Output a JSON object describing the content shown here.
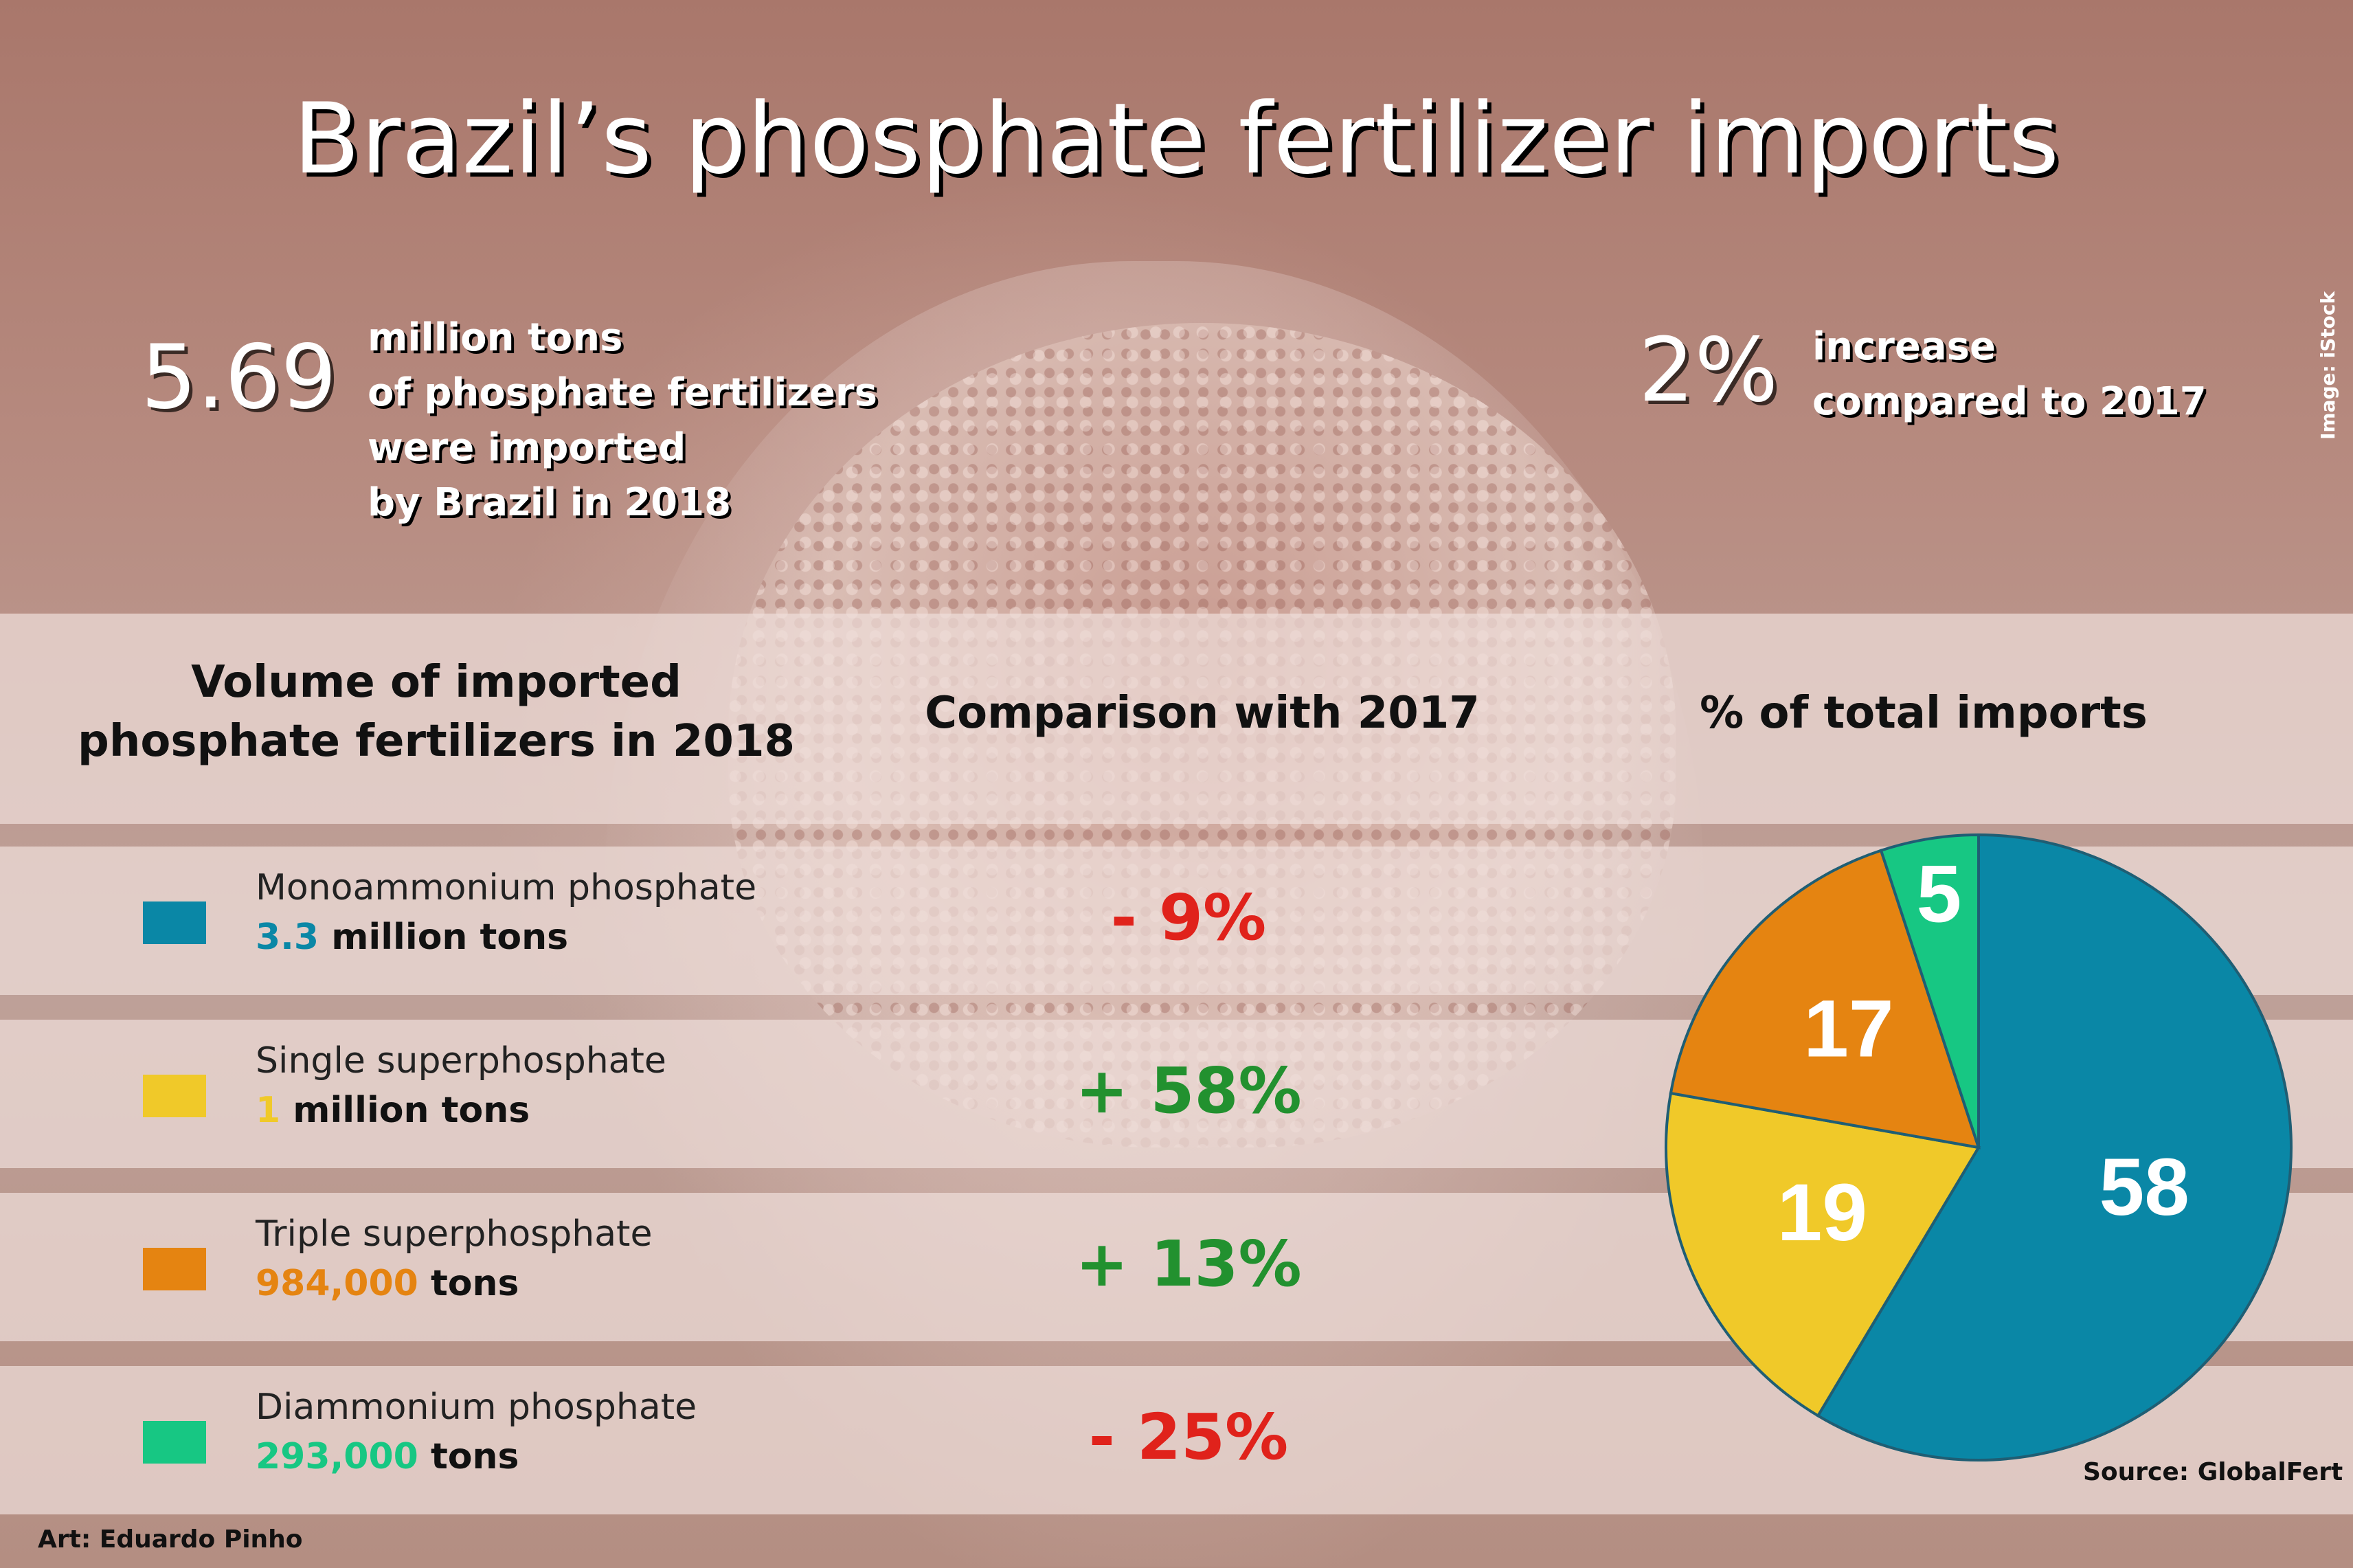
{
  "title": "Brazil’s phosphate fertilizer imports",
  "stats": {
    "total_value": "5.69",
    "total_text": [
      "million tons",
      "of phosphate fertilizers",
      "were imported",
      "by Brazil in 2018"
    ],
    "increase_value": "2%",
    "increase_text": [
      "increase",
      "compared to 2017"
    ]
  },
  "image_credit": "Image: iStock",
  "headers": {
    "volume": [
      "Volume of imported",
      "phosphate fertilizers in 2018"
    ],
    "comparison": "Comparison with 2017",
    "share": "% of total imports"
  },
  "rows": [
    {
      "name": "Monoammonium phosphate",
      "amount_value": "3.3",
      "amount_unit": " million tons",
      "change": "- 9%",
      "color": "#0a87a6"
    },
    {
      "name": "Single superphosphate",
      "amount_value": "1",
      "amount_unit": " million tons",
      "change": "+ 58%",
      "color": "#f0c929"
    },
    {
      "name": "Triple superphosphate",
      "amount_value": "984,000",
      "amount_unit": " tons",
      "change": "+ 13%",
      "color": "#e58411"
    },
    {
      "name": "Diammonium phosphate",
      "amount_value": "293,000",
      "amount_unit": " tons",
      "change": "- 25%",
      "color": "#17c783"
    }
  ],
  "chart_data": {
    "type": "pie",
    "title": "% of total imports",
    "categories": [
      "Monoammonium phosphate",
      "Single superphosphate",
      "Triple superphosphate",
      "Diammonium phosphate"
    ],
    "values": [
      58,
      19,
      17,
      5
    ],
    "labels": [
      "58",
      "19",
      "17",
      "5"
    ],
    "colors": [
      "#0a87a6",
      "#f0c929",
      "#e58411",
      "#17c783"
    ],
    "start": "12 o'clock, clockwise"
  },
  "source": "Source: GlobalFert",
  "art_credit": "Art: Eduardo Pinho"
}
